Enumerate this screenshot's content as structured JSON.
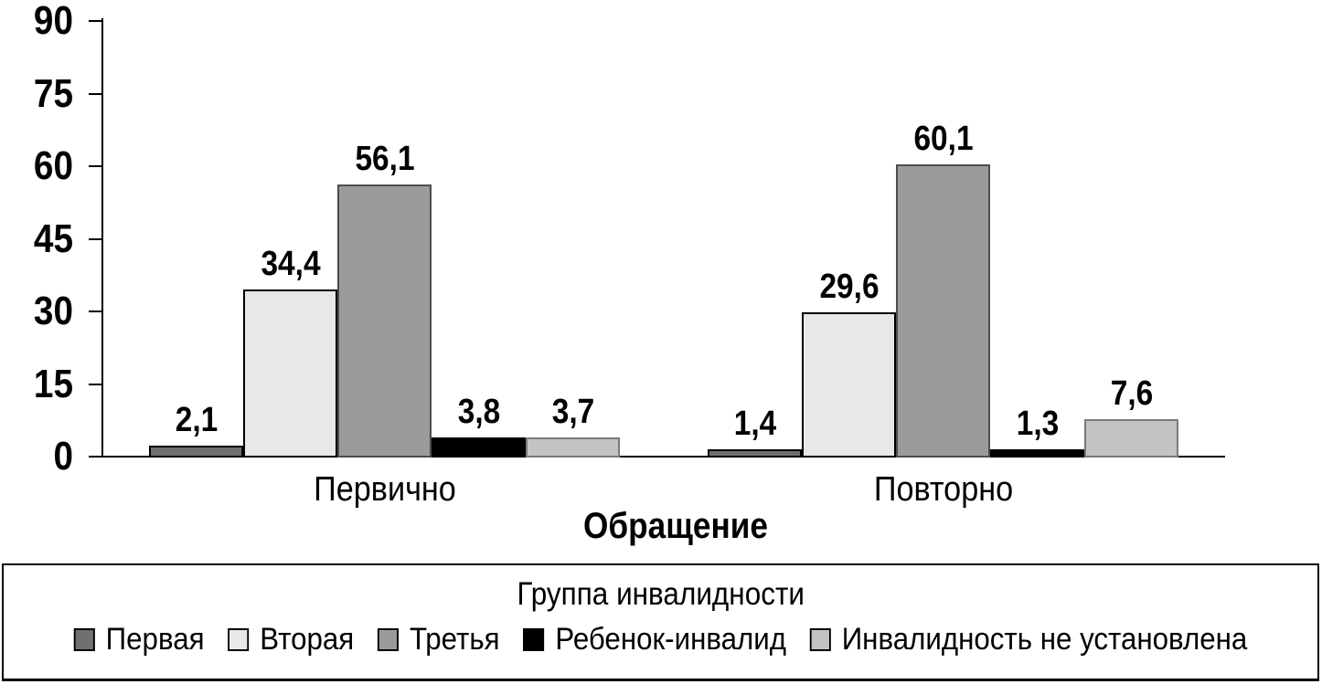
{
  "chart_data": {
    "type": "bar",
    "title": "",
    "categories": [
      "Первично",
      "Повторно"
    ],
    "xlabel": "Обращение",
    "ylabel": "",
    "ylim": [
      0,
      90
    ],
    "yticks": [
      0,
      15,
      30,
      45,
      60,
      75,
      90
    ],
    "ytick_labels": [
      "0",
      "15",
      "30",
      "45",
      "60",
      "75",
      "90"
    ],
    "grid": false,
    "decimal_separator": ",",
    "legend_title": "Группа инвалидности",
    "legend_position": "bottom",
    "series": [
      {
        "name": "Первая",
        "values": [
          2.1,
          1.4
        ],
        "labels": [
          "2,1",
          "1,4"
        ],
        "color": "#707070",
        "border_color": "#000000"
      },
      {
        "name": "Вторая",
        "values": [
          34.4,
          29.6
        ],
        "labels": [
          "34,4",
          "29,6"
        ],
        "color": "#e8e8e8",
        "border_color": "#000000"
      },
      {
        "name": "Третья",
        "values": [
          56.1,
          60.1
        ],
        "labels": [
          "56,1",
          "60,1"
        ],
        "color": "#9b9b9b",
        "border_color": "#4d4d4d"
      },
      {
        "name": "Ребенок-инвалид",
        "values": [
          3.8,
          1.3
        ],
        "labels": [
          "3,8",
          "1,3"
        ],
        "color": "#000000",
        "border_color": "#000000"
      },
      {
        "name": "Инвалидность не установлена",
        "values": [
          3.7,
          7.6
        ],
        "labels": [
          "3,7",
          "7,6"
        ],
        "color": "#c3c3c3",
        "border_color": "#7a7a7a"
      }
    ],
    "axis_color": "#000000",
    "text_color": "#000000"
  }
}
